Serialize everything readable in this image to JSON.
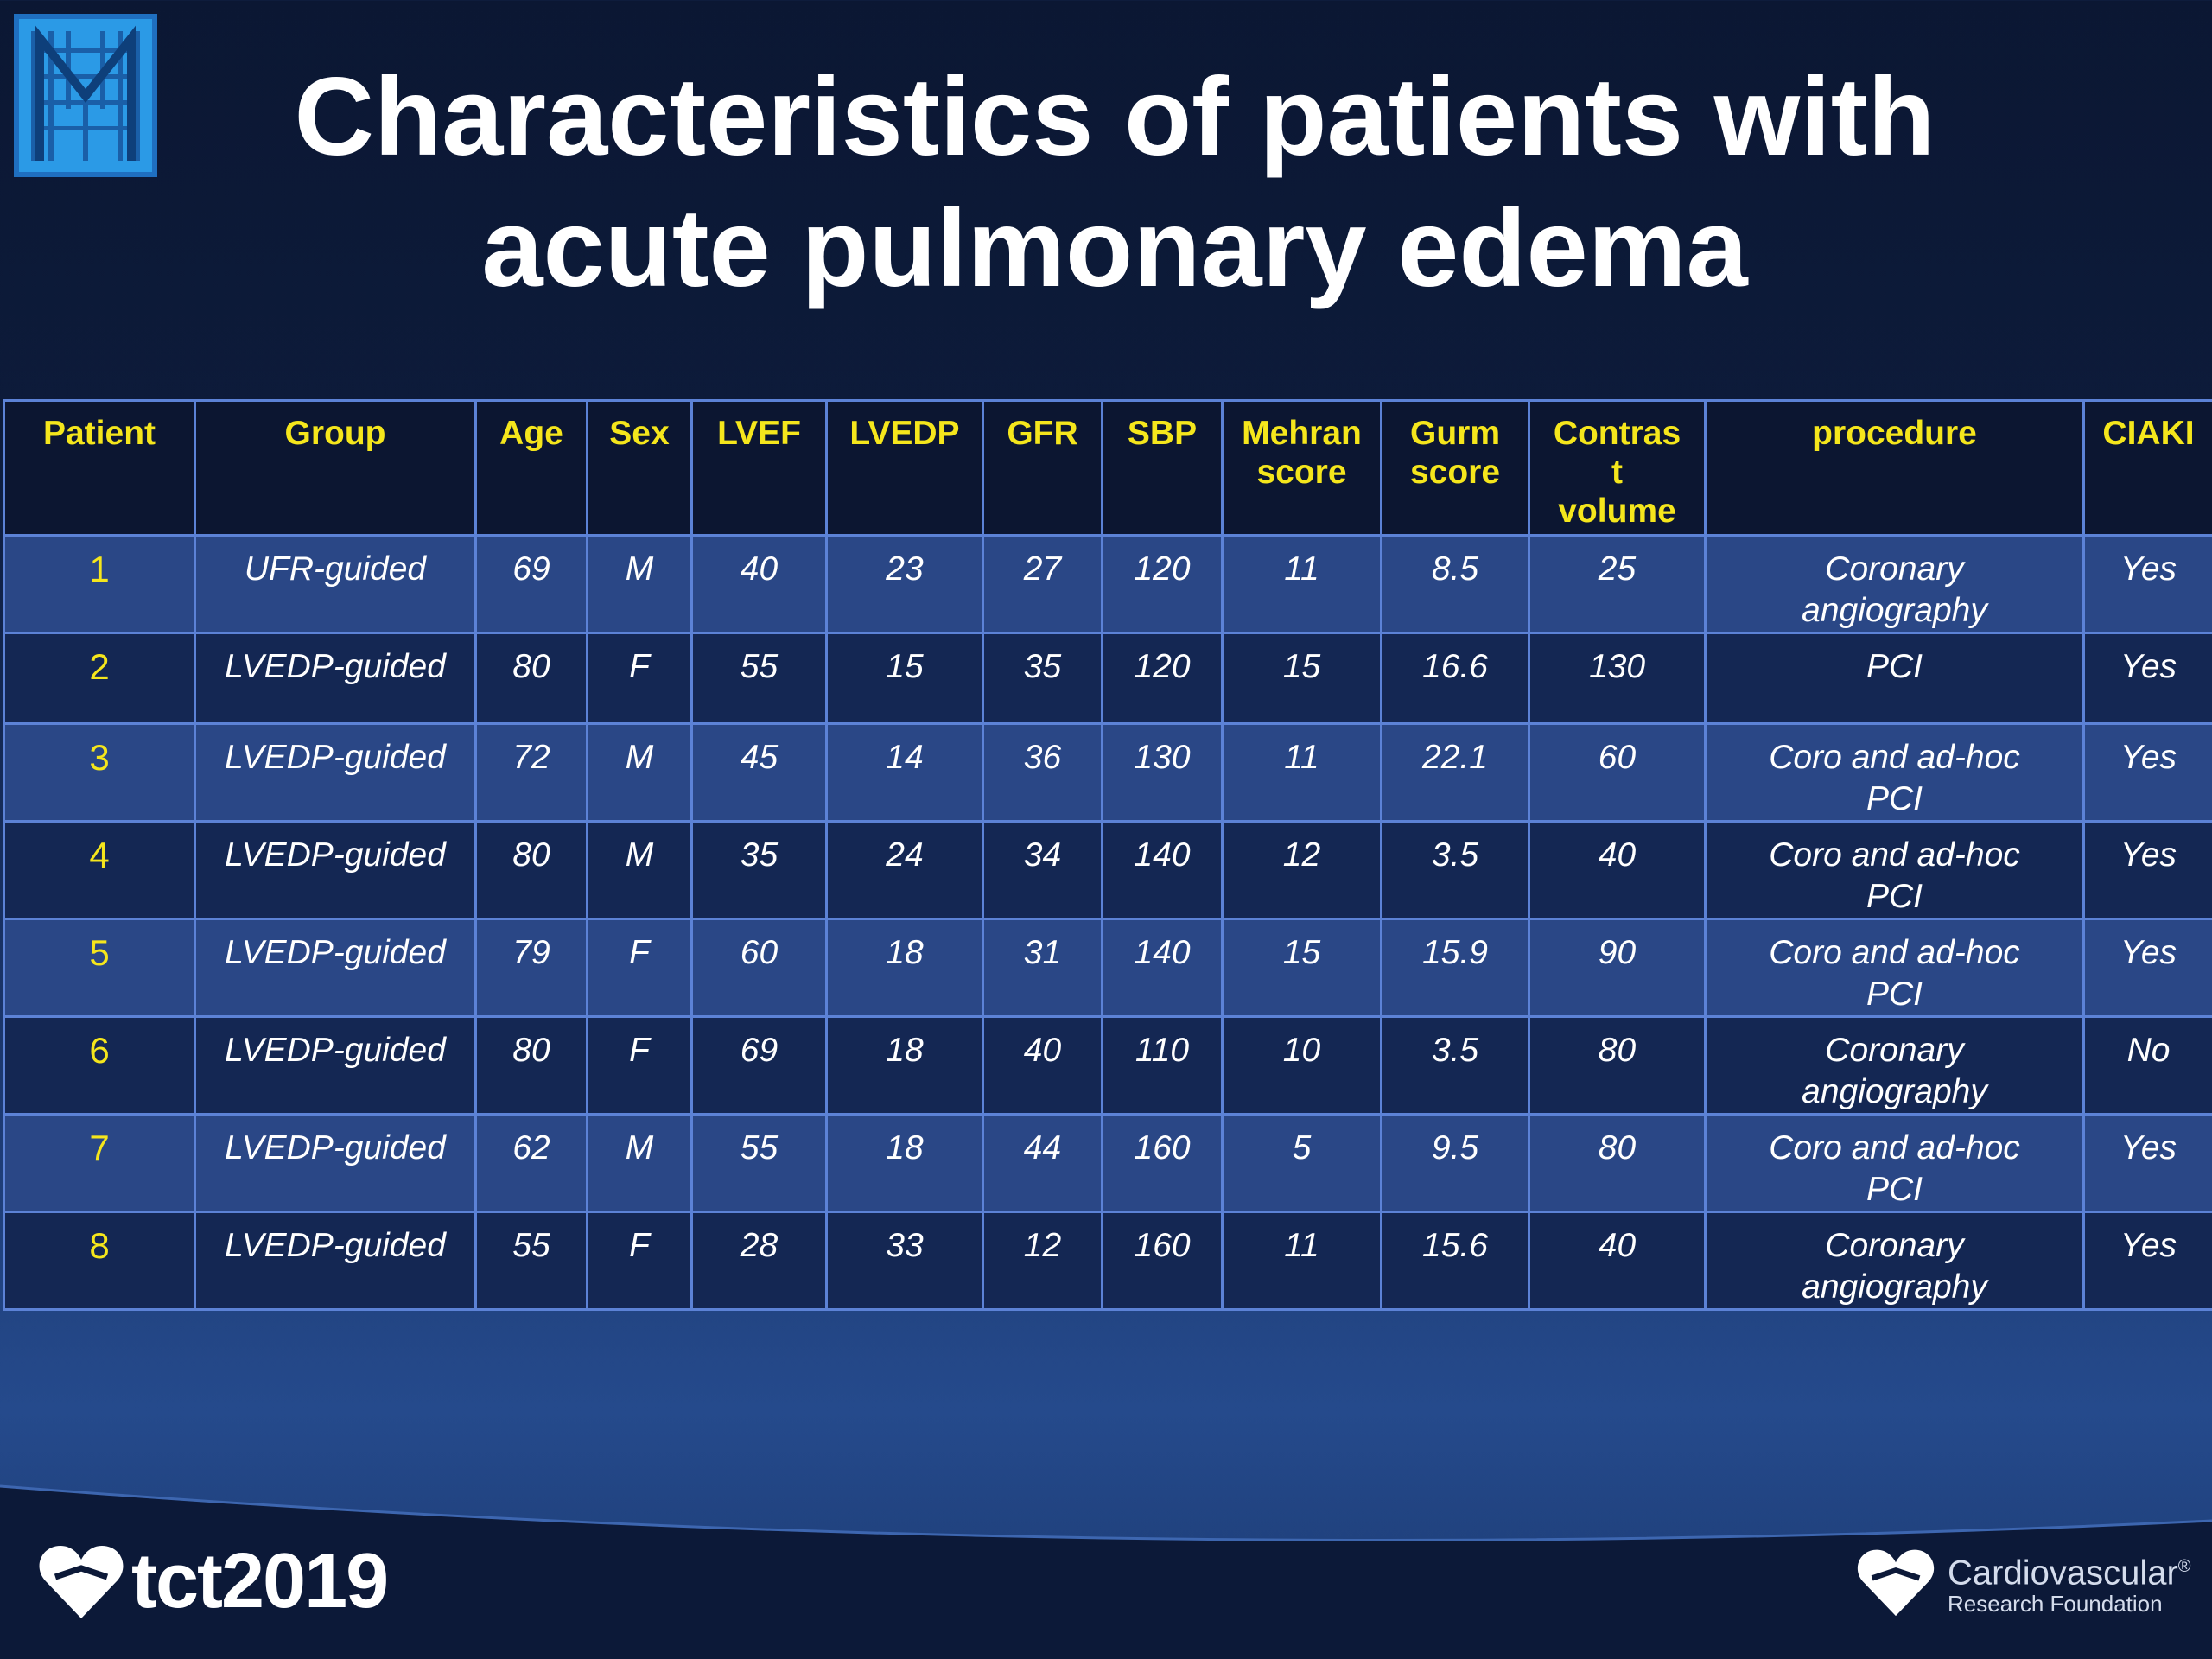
{
  "title": {
    "line1": "Characteristics of patients with",
    "line2": "acute pulmonary edema"
  },
  "table": {
    "headers": [
      "Patient",
      "Group",
      "Age",
      "Sex",
      "LVEF",
      "LVEDP",
      "GFR",
      "SBP",
      "Mehran score",
      "Gurm score",
      "Contras t volume",
      "procedure",
      "CIAKI"
    ],
    "rows": [
      [
        "1",
        "UFR-guided",
        "69",
        "M",
        "40",
        "23",
        "27",
        "120",
        "11",
        "8.5",
        "25",
        "Coronary angiography",
        "Yes"
      ],
      [
        "2",
        "LVEDP-guided",
        "80",
        "F",
        "55",
        "15",
        "35",
        "120",
        "15",
        "16.6",
        "130",
        "PCI",
        "Yes"
      ],
      [
        "3",
        "LVEDP-guided",
        "72",
        "M",
        "45",
        "14",
        "36",
        "130",
        "11",
        "22.1",
        "60",
        "Coro and ad-hoc PCI",
        "Yes"
      ],
      [
        "4",
        "LVEDP-guided",
        "80",
        "M",
        "35",
        "24",
        "34",
        "140",
        "12",
        "3.5",
        "40",
        "Coro and ad-hoc PCI",
        "Yes"
      ],
      [
        "5",
        "LVEDP-guided",
        "79",
        "F",
        "60",
        "18",
        "31",
        "140",
        "15",
        "15.9",
        "90",
        "Coro and ad-hoc PCI",
        "Yes"
      ],
      [
        "6",
        "LVEDP-guided",
        "80",
        "F",
        "69",
        "18",
        "40",
        "110",
        "10",
        "3.5",
        "80",
        "Coronary angiography",
        "No"
      ],
      [
        "7",
        "LVEDP-guided",
        "62",
        "M",
        "55",
        "18",
        "44",
        "160",
        "5",
        "9.5",
        "80",
        "Coro and ad-hoc PCI",
        "Yes"
      ],
      [
        "8",
        "LVEDP-guided",
        "55",
        "F",
        "28",
        "33",
        "12",
        "160",
        "11",
        "15.6",
        "40",
        "Coronary angiography",
        "Yes"
      ]
    ]
  },
  "footer": {
    "tct_logo_text": "tct2019",
    "crf_line1": "Cardiovascular",
    "crf_line2": "Research Foundation",
    "crf_registered": "®"
  },
  "colors": {
    "header_text": "#f5e61c",
    "grid": "#5c82d6",
    "row_light": "#2a4786",
    "row_dark": "#142753",
    "logo_blue": "#2b8fe0"
  },
  "icons": {
    "top_left_logo": "m-block-logo-icon",
    "tct_logo": "heart-logo-icon",
    "crf_logo": "heart-logo-icon"
  }
}
